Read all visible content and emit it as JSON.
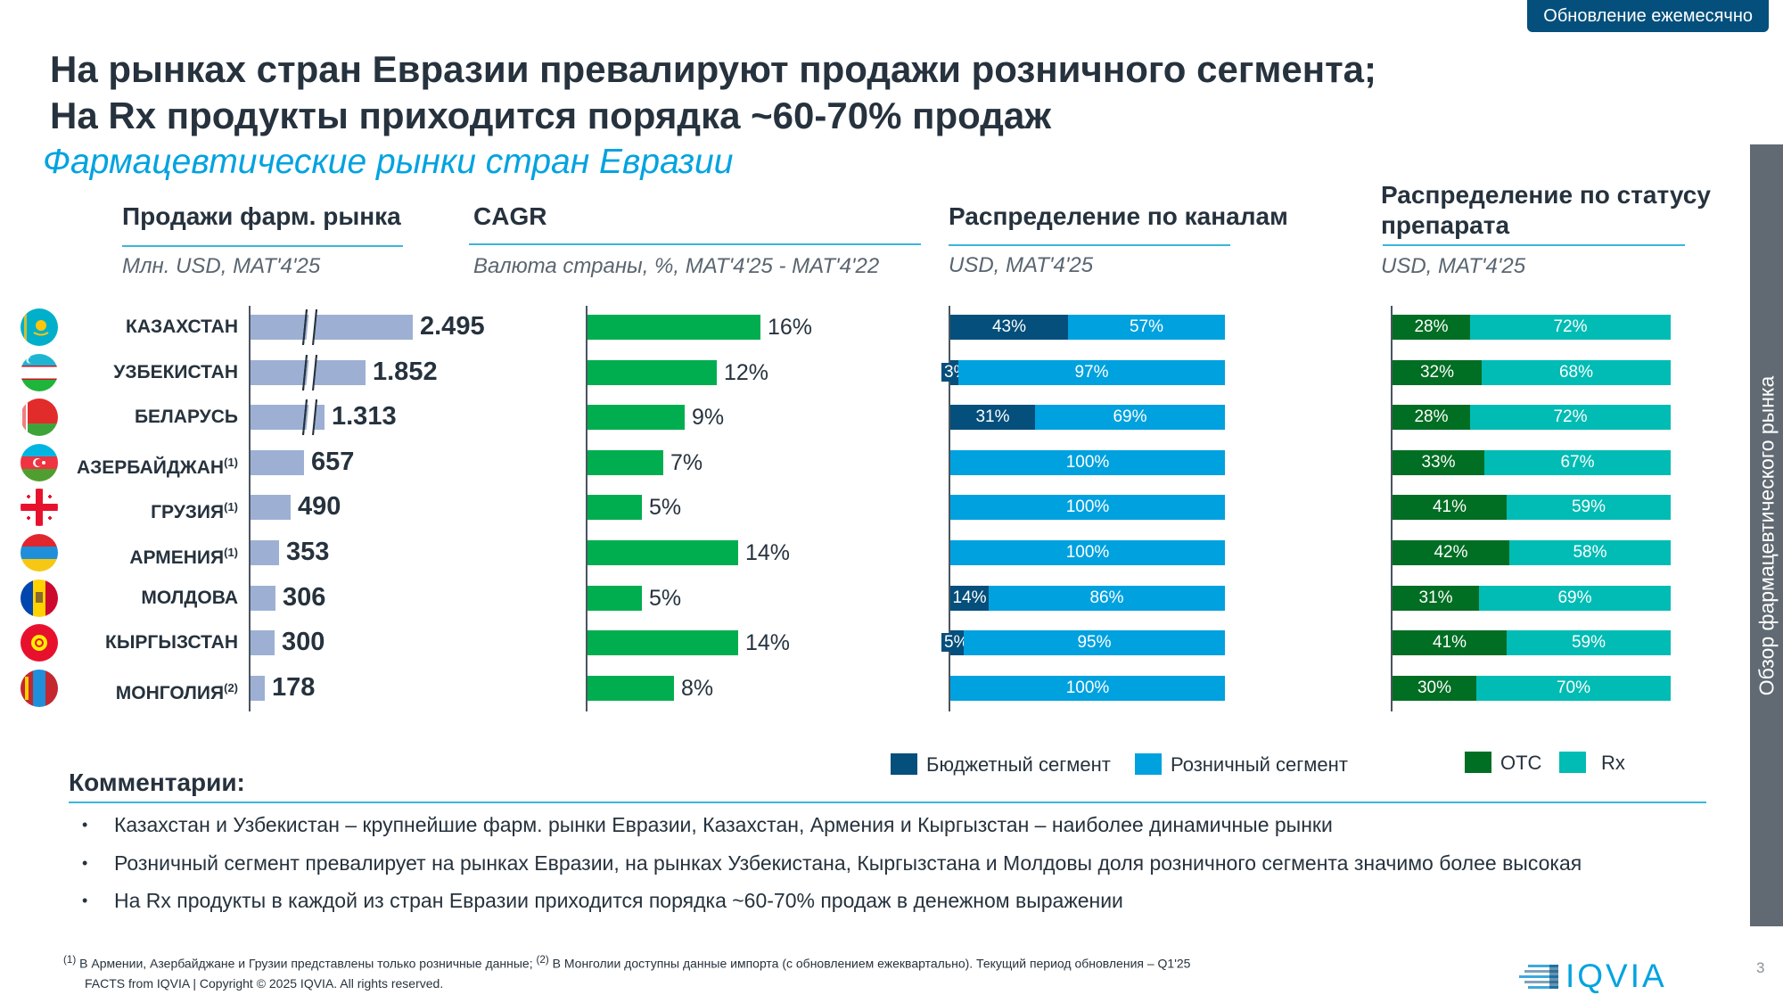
{
  "badge": "Обновление ежемесячно",
  "title_lines": [
    "На рынках стран Евразии превалируют продажи розничного сегмента;",
    "На Rx продукты приходится порядка ~60-70% продаж"
  ],
  "subtitle": "Фармацевтические рынки стран Евразии",
  "side_tab": "Обзор фармацевтического рынка",
  "sections": {
    "sales": {
      "title": "Продажи фарм. рынка",
      "unit": "Млн. USD, MAT'4'25"
    },
    "cagr": {
      "title": "CAGR",
      "unit": "Валюта страны, %, MAT'4'25 - MAT'4'22"
    },
    "channels": {
      "title": "Распределение по каналам",
      "unit": "USD, MAT'4'25"
    },
    "status": {
      "title_lines": [
        "Распределение по статусу",
        "препарата"
      ],
      "unit": "USD, MAT'4'25"
    }
  },
  "countries": [
    {
      "name": "КАЗАХСТАН",
      "note": "",
      "flag": "kazakhstan"
    },
    {
      "name": "УЗБЕКИСТАН",
      "note": "",
      "flag": "uzbekistan"
    },
    {
      "name": "БЕЛАРУСЬ",
      "note": "",
      "flag": "belarus"
    },
    {
      "name": "АЗЕРБАЙДЖАН",
      "note": "(1)",
      "flag": "azerbaijan"
    },
    {
      "name": "ГРУЗИЯ",
      "note": "(1)",
      "flag": "georgia"
    },
    {
      "name": "АРМЕНИЯ",
      "note": "(1)",
      "flag": "armenia"
    },
    {
      "name": "МОЛДОВА",
      "note": "",
      "flag": "moldova"
    },
    {
      "name": "КЫРГЫЗСТАН",
      "note": "",
      "flag": "kyrgyzstan"
    },
    {
      "name": "МОНГОЛИЯ",
      "note": "(2)",
      "flag": "mongolia"
    }
  ],
  "chart_data": [
    {
      "type": "bar",
      "title": "Продажи фарм. рынка",
      "ylabel": "Млн. USD, MAT'4'25",
      "orientation": "horizontal",
      "categories": [
        "КАЗАХСТАН",
        "УЗБЕКИСТАН",
        "БЕЛАРУСЬ",
        "АЗЕРБАЙДЖАН",
        "ГРУЗИЯ",
        "АРМЕНИЯ",
        "МОЛДОВА",
        "КЫРГЫЗСТАН",
        "МОНГОЛИЯ"
      ],
      "values": [
        2495,
        1852,
        1313,
        657,
        490,
        353,
        306,
        300,
        178
      ],
      "labels": [
        "2.495",
        "1.852",
        "1.313",
        "657",
        "490",
        "353",
        "306",
        "300",
        "178"
      ],
      "axis_break": [
        true,
        true,
        true,
        false,
        false,
        false,
        false,
        false,
        false
      ],
      "color": "#9db0d3"
    },
    {
      "type": "bar",
      "title": "CAGR",
      "ylabel": "Валюта страны, %, MAT'4'25 - MAT'4'22",
      "orientation": "horizontal",
      "categories": [
        "КАЗАХСТАН",
        "УЗБЕКИСТАН",
        "БЕЛАРУСЬ",
        "АЗЕРБАЙДЖАН",
        "ГРУЗИЯ",
        "АРМЕНИЯ",
        "МОЛДОВА",
        "КЫРГЫЗСТАН",
        "МОНГОЛИЯ"
      ],
      "values": [
        16,
        12,
        9,
        7,
        5,
        14,
        5,
        14,
        8
      ],
      "labels": [
        "16%",
        "12%",
        "9%",
        "7%",
        "5%",
        "14%",
        "5%",
        "14%",
        "8%"
      ],
      "color": "#00ae4f"
    },
    {
      "type": "bar",
      "stacked": true,
      "title": "Распределение по каналам",
      "ylabel": "USD, MAT'4'25",
      "orientation": "horizontal",
      "categories": [
        "КАЗАХСТАН",
        "УЗБЕКИСТАН",
        "БЕЛАРУСЬ",
        "АЗЕРБАЙДЖАН",
        "ГРУЗИЯ",
        "АРМЕНИЯ",
        "МОЛДОВА",
        "КЫРГЫЗСТАН",
        "МОНГОЛИЯ"
      ],
      "series": [
        {
          "name": "Бюджетный сегмент",
          "color": "#044f7c",
          "values": [
            43,
            3,
            31,
            0,
            0,
            0,
            14,
            5,
            0
          ]
        },
        {
          "name": "Розничный сегмент",
          "color": "#00a1df",
          "values": [
            57,
            97,
            69,
            100,
            100,
            100,
            86,
            95,
            100
          ]
        }
      ],
      "legend": "bottom"
    },
    {
      "type": "bar",
      "stacked": true,
      "title": "Распределение по статусу препарата",
      "ylabel": "USD, MAT'4'25",
      "orientation": "horizontal",
      "categories": [
        "КАЗАХСТАН",
        "УЗБЕКИСТАН",
        "БЕЛАРУСЬ",
        "АЗЕРБАЙДЖАН",
        "ГРУЗИЯ",
        "АРМЕНИЯ",
        "МОЛДОВА",
        "КЫРГЫЗСТАН",
        "МОНГОЛИЯ"
      ],
      "series": [
        {
          "name": "OTC",
          "color": "#006e23",
          "values": [
            28,
            32,
            28,
            33,
            41,
            42,
            31,
            41,
            30
          ]
        },
        {
          "name": "Rx",
          "color": "#00bcb4",
          "values": [
            72,
            68,
            72,
            67,
            59,
            58,
            69,
            59,
            70
          ]
        }
      ],
      "legend": "bottom"
    }
  ],
  "legends": {
    "channels": [
      "Бюджетный сегмент",
      "Розничный сегмент"
    ],
    "status": [
      "OTC",
      "Rx"
    ]
  },
  "comments": {
    "heading": "Комментарии:",
    "bullets": [
      "Казахстан и Узбекистан – крупнейшие фарм. рынки Евразии, Казахстан, Армения и Кыргызстан – наиболее динамичные рынки",
      "Розничный сегмент превалирует на рынках Евразии, на рынках Узбекистана, Кыргызстана и Молдовы доля розничного сегмента значимо более высокая",
      "На Rx продукты в каждой из стран Евразии приходится порядка ~60-70% продаж в денежном выражении"
    ]
  },
  "footnotes": {
    "note1_mark": "(1)",
    "note1": " В Армении, Азербайджане и Грузии представлены только розничные данные; ",
    "note2_mark": "(2)",
    "note2": " В Монголии доступны данные импорта (с обновлением ежеквартально). Текущий период обновления – Q1'25",
    "copyright": "FACTS from IQVIA | Copyright © 2025 IQVIA. All rights reserved."
  },
  "logo": "IQVIA",
  "page_number": "3"
}
